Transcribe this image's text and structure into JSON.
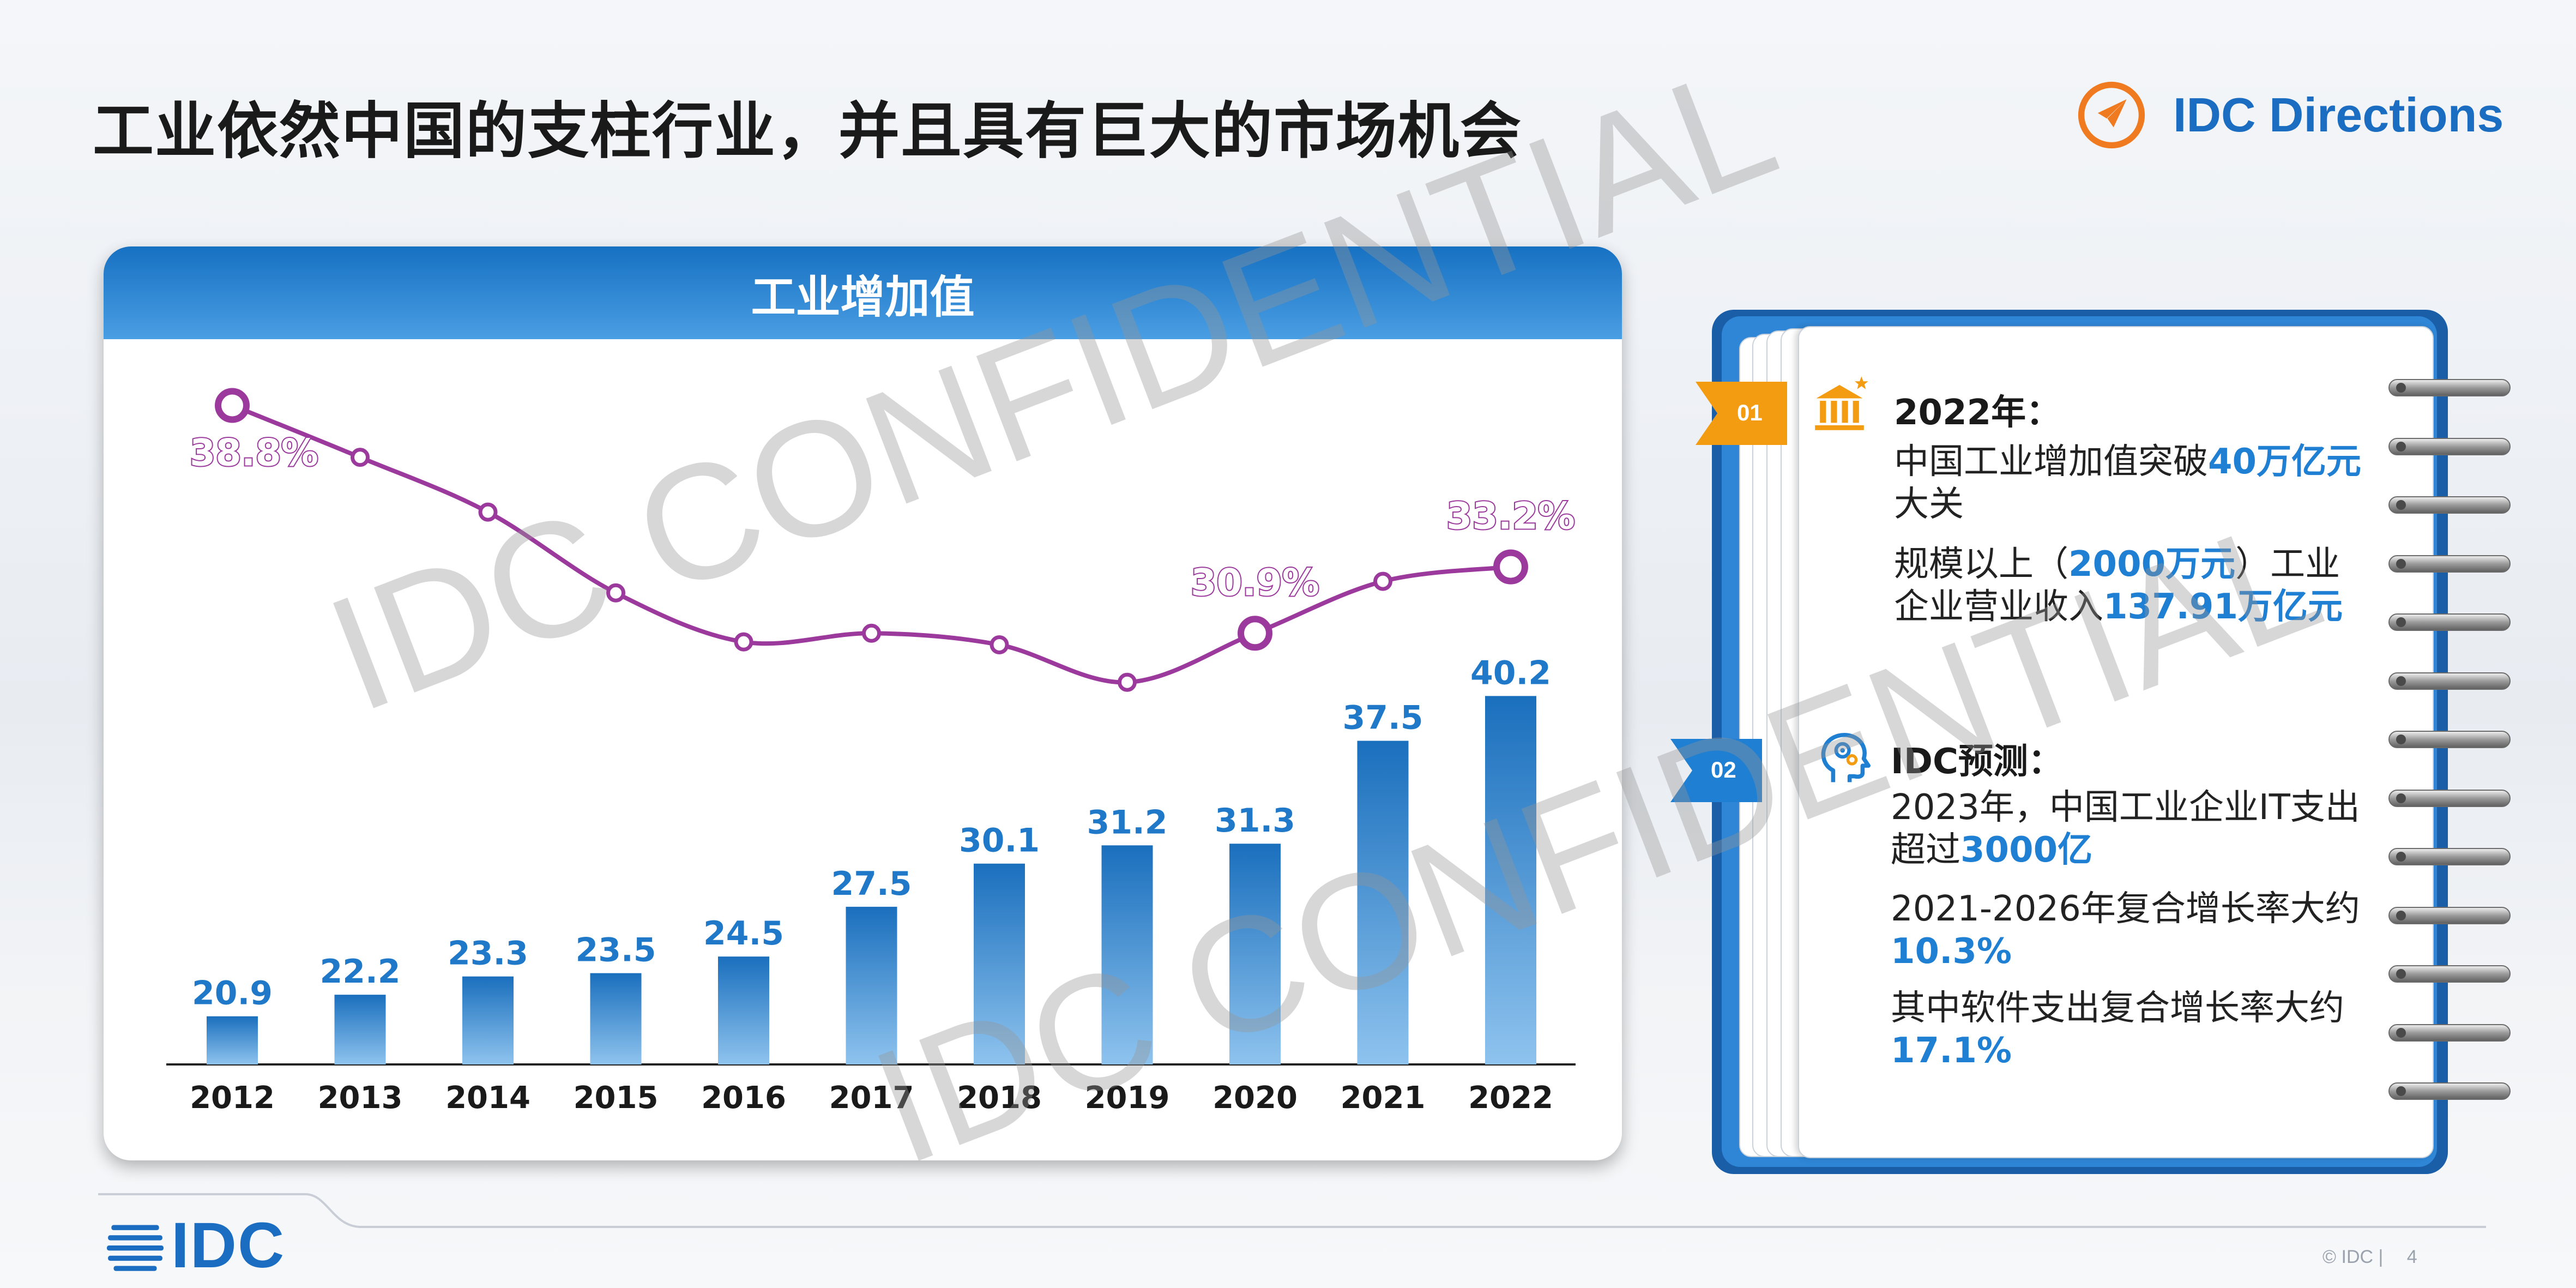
{
  "title": "工业依然中国的支柱行业，并且具有巨大的市场机会",
  "brand": {
    "name": "IDC Directions",
    "icon": "compass-icon",
    "color": "#1b6dc1",
    "accent": "#f07a20"
  },
  "card": {
    "title": "工业增加值"
  },
  "chart_data": {
    "type": "bar+line",
    "categories": [
      "2012",
      "2013",
      "2014",
      "2015",
      "2016",
      "2017",
      "2018",
      "2019",
      "2020",
      "2021",
      "2022"
    ],
    "series": [
      {
        "type": "bar",
        "values": [
          20.9,
          22.2,
          23.3,
          23.5,
          24.5,
          27.5,
          30.1,
          31.2,
          31.3,
          37.5,
          40.2
        ],
        "color": "#1a72c0"
      },
      {
        "type": "line",
        "values": [
          38.8,
          37.0,
          35.1,
          32.3,
          30.6,
          30.9,
          30.5,
          29.2,
          30.9,
          32.7,
          33.2
        ],
        "color": "#9b3a9c"
      }
    ],
    "line_labels": [
      {
        "index": 0,
        "text": "38.8%"
      },
      {
        "index": 8,
        "text": "30.9%"
      },
      {
        "index": 10,
        "text": "33.2%"
      }
    ],
    "bar_axis_range": [
      18,
      41
    ],
    "line_axis_range": [
      22,
      40
    ]
  },
  "notebook": {
    "sections": [
      {
        "num": "01",
        "icon": "bank-icon",
        "heading": "2022年：",
        "paragraphs": [
          [
            {
              "t": "中国工业增加值突破"
            },
            {
              "t": "40万亿元",
              "hl": true
            },
            {
              "t": "大关"
            }
          ],
          [
            {
              "t": "规模以上（"
            },
            {
              "t": "2000万元",
              "hl": true
            },
            {
              "t": "）工业企业营业收入"
            },
            {
              "t": "137.91万亿元",
              "hl": true
            }
          ]
        ]
      },
      {
        "num": "02",
        "icon": "head-gear-icon",
        "heading": "IDC预测：",
        "paragraphs": [
          [
            {
              "t": "2023年，中国工业企业IT支出超过"
            },
            {
              "t": "3000亿",
              "hl": true
            }
          ],
          [
            {
              "t": "2021-2026年复合增长率大约"
            },
            {
              "t": "10.3%",
              "hl": true
            }
          ],
          [
            {
              "t": "其中软件支出复合增长率大约"
            },
            {
              "t": "17.1%",
              "hl": true
            }
          ]
        ]
      }
    ],
    "ribbon_colors": [
      "#f39c12",
      "#1f7fd2"
    ]
  },
  "watermark": "IDC CONFIDENTIAL",
  "footer": {
    "logo": "IDC",
    "copyright": "© IDC |",
    "page": "4"
  }
}
